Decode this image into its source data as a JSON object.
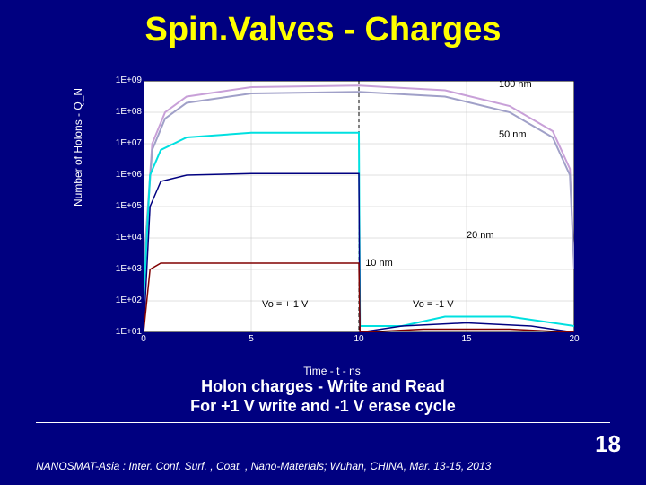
{
  "title": "Spin.Valves - Charges",
  "chart": {
    "type": "line-log",
    "background_color": "#ffffff",
    "slide_bg": "#000080",
    "xlim": [
      0,
      20
    ],
    "xtick_step": 5,
    "ylim_exp": [
      1,
      9
    ],
    "ytick_labels": [
      "1E+01",
      "1E+02",
      "1E+03",
      "1E+04",
      "1E+05",
      "1E+06",
      "1E+07",
      "1E+08",
      "1E+09"
    ],
    "xtick_labels": [
      "0",
      "5",
      "10",
      "15",
      "20"
    ],
    "ylabel": "Number of Holons - Q_N",
    "xlabel": "Time - t - ns",
    "grid_color": "#c0c0c0",
    "axis_color": "#000000",
    "vline_x": 10,
    "vline_color": "#000000",
    "series": [
      {
        "name": "100 nm (series A)",
        "color": "#c8a0d8",
        "width": 2,
        "points": [
          [
            0.0,
            3.0
          ],
          [
            0.4,
            7.0
          ],
          [
            1.0,
            8.0
          ],
          [
            2.0,
            8.5
          ],
          [
            5.0,
            8.8
          ],
          [
            10.0,
            8.85
          ],
          [
            14.0,
            8.7
          ],
          [
            17.0,
            8.2
          ],
          [
            19.0,
            7.4
          ],
          [
            19.8,
            6.2
          ],
          [
            20.0,
            3.0
          ]
        ]
      },
      {
        "name": "100 nm (series B)",
        "color": "#a0a0c8",
        "width": 2,
        "points": [
          [
            0.0,
            3.0
          ],
          [
            0.4,
            6.8
          ],
          [
            1.0,
            7.8
          ],
          [
            2.0,
            8.3
          ],
          [
            5.0,
            8.6
          ],
          [
            10.0,
            8.65
          ],
          [
            14.0,
            8.5
          ],
          [
            17.0,
            8.0
          ],
          [
            19.0,
            7.2
          ],
          [
            19.8,
            6.0
          ],
          [
            20.0,
            3.0
          ]
        ]
      },
      {
        "name": "50 nm",
        "color": "#00e0e0",
        "width": 2,
        "points": [
          [
            0.0,
            2.0
          ],
          [
            0.3,
            6.0
          ],
          [
            0.8,
            6.8
          ],
          [
            2.0,
            7.2
          ],
          [
            5.0,
            7.35
          ],
          [
            10.0,
            7.35
          ],
          [
            10.05,
            1.2
          ],
          [
            12.0,
            1.2
          ],
          [
            14.0,
            1.5
          ],
          [
            17.0,
            1.5
          ],
          [
            20.0,
            1.2
          ]
        ]
      },
      {
        "name": "20 nm",
        "color": "#000080",
        "width": 1.5,
        "points": [
          [
            0.0,
            1.0
          ],
          [
            0.3,
            5.0
          ],
          [
            0.8,
            5.8
          ],
          [
            2.0,
            6.0
          ],
          [
            5.0,
            6.05
          ],
          [
            10.0,
            6.05
          ],
          [
            10.05,
            1.0
          ],
          [
            12.0,
            1.2
          ],
          [
            15.0,
            1.3
          ],
          [
            18.0,
            1.2
          ],
          [
            20.0,
            1.0
          ]
        ]
      },
      {
        "name": "10 nm",
        "color": "#800000",
        "width": 1.5,
        "points": [
          [
            0.0,
            1.0
          ],
          [
            0.3,
            3.0
          ],
          [
            0.8,
            3.2
          ],
          [
            2.0,
            3.2
          ],
          [
            5.0,
            3.2
          ],
          [
            10.0,
            3.2
          ],
          [
            10.05,
            1.0
          ],
          [
            13.0,
            1.1
          ],
          [
            17.0,
            1.1
          ],
          [
            20.0,
            1.0
          ]
        ]
      }
    ],
    "annotations": [
      {
        "text": "100 nm",
        "x": 16.5,
        "yexp": 8.9
      },
      {
        "text": "50 nm",
        "x": 16.5,
        "yexp": 7.3
      },
      {
        "text": "20 nm",
        "x": 15.0,
        "yexp": 4.1
      },
      {
        "text": "10 nm",
        "x": 10.3,
        "yexp": 3.2
      },
      {
        "text": "Vo = + 1 V",
        "x": 5.5,
        "yexp": 1.9
      },
      {
        "text": "Vo = -1 V",
        "x": 12.5,
        "yexp": 1.9
      }
    ]
  },
  "caption1": "Holon charges - Write and Read",
  "caption2": "For +1 V write and -1 V erase cycle",
  "footer": "NANOSMAT-Asia : Inter. Conf. Surf. , Coat. , Nano-Materials; Wuhan, CHINA, Mar. 13-15, 2013",
  "pagenum": "18"
}
